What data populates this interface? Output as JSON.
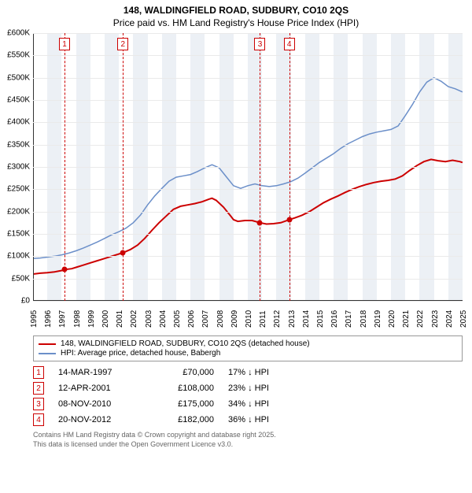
{
  "title_line1": "148, WALDINGFIELD ROAD, SUDBURY, CO10 2QS",
  "title_line2": "Price paid vs. HM Land Registry's House Price Index (HPI)",
  "chart": {
    "type": "line",
    "background_color": "#ffffff",
    "grid_color": "#eaeaea",
    "band_color": "#dce3ec",
    "axis_color": "#333333",
    "x": {
      "start": 1995,
      "end": 2025,
      "ticks": [
        1995,
        1996,
        1997,
        1998,
        1999,
        2000,
        2001,
        2002,
        2003,
        2004,
        2005,
        2006,
        2007,
        2008,
        2009,
        2010,
        2011,
        2012,
        2013,
        2014,
        2015,
        2016,
        2017,
        2018,
        2019,
        2020,
        2021,
        2022,
        2023,
        2024,
        2025
      ]
    },
    "y": {
      "start": 0,
      "end": 600000,
      "ticks": [
        0,
        50000,
        100000,
        150000,
        200000,
        250000,
        300000,
        350000,
        400000,
        450000,
        500000,
        550000,
        600000
      ],
      "tick_labels": [
        "£0",
        "£50K",
        "£100K",
        "£150K",
        "£200K",
        "£250K",
        "£300K",
        "£350K",
        "£400K",
        "£450K",
        "£500K",
        "£550K",
        "£600K"
      ]
    },
    "alt_bands_start": 1995,
    "tick_fontsize": 10,
    "series": [
      {
        "key": "property",
        "label": "148, WALDINGFIELD ROAD, SUDBURY, CO10 2QS (detached house)",
        "color": "#cc0000",
        "width": 2,
        "points": [
          [
            1995.0,
            60000
          ],
          [
            1995.5,
            62000
          ],
          [
            1996.0,
            63000
          ],
          [
            1996.5,
            65000
          ],
          [
            1997.0,
            68000
          ],
          [
            1997.2,
            70000
          ],
          [
            1997.7,
            72000
          ],
          [
            1998.0,
            75000
          ],
          [
            1998.5,
            80000
          ],
          [
            1999.0,
            85000
          ],
          [
            1999.5,
            90000
          ],
          [
            2000.0,
            95000
          ],
          [
            2000.5,
            100000
          ],
          [
            2001.0,
            105000
          ],
          [
            2001.3,
            108000
          ],
          [
            2001.8,
            115000
          ],
          [
            2002.3,
            125000
          ],
          [
            2002.8,
            140000
          ],
          [
            2003.3,
            158000
          ],
          [
            2003.8,
            175000
          ],
          [
            2004.3,
            190000
          ],
          [
            2004.8,
            205000
          ],
          [
            2005.3,
            212000
          ],
          [
            2005.8,
            215000
          ],
          [
            2006.3,
            218000
          ],
          [
            2006.8,
            222000
          ],
          [
            2007.3,
            228000
          ],
          [
            2007.5,
            230000
          ],
          [
            2007.8,
            225000
          ],
          [
            2008.3,
            210000
          ],
          [
            2008.8,
            190000
          ],
          [
            2009.0,
            182000
          ],
          [
            2009.3,
            178000
          ],
          [
            2009.8,
            180000
          ],
          [
            2010.3,
            180000
          ],
          [
            2010.85,
            175000
          ],
          [
            2011.3,
            172000
          ],
          [
            2011.8,
            173000
          ],
          [
            2012.3,
            175000
          ],
          [
            2012.9,
            182000
          ],
          [
            2013.3,
            186000
          ],
          [
            2013.8,
            192000
          ],
          [
            2014.3,
            200000
          ],
          [
            2014.8,
            210000
          ],
          [
            2015.3,
            220000
          ],
          [
            2015.8,
            228000
          ],
          [
            2016.3,
            235000
          ],
          [
            2016.8,
            243000
          ],
          [
            2017.3,
            250000
          ],
          [
            2017.8,
            256000
          ],
          [
            2018.3,
            261000
          ],
          [
            2018.8,
            265000
          ],
          [
            2019.3,
            268000
          ],
          [
            2019.8,
            270000
          ],
          [
            2020.3,
            273000
          ],
          [
            2020.8,
            280000
          ],
          [
            2021.3,
            292000
          ],
          [
            2021.8,
            303000
          ],
          [
            2022.3,
            312000
          ],
          [
            2022.8,
            317000
          ],
          [
            2023.3,
            314000
          ],
          [
            2023.8,
            312000
          ],
          [
            2024.3,
            315000
          ],
          [
            2024.8,
            312000
          ],
          [
            2025.0,
            310000
          ]
        ]
      },
      {
        "key": "hpi",
        "label": "HPI: Average price, detached house, Babergh",
        "color": "#6b8fc9",
        "width": 1.5,
        "points": [
          [
            1995.0,
            95000
          ],
          [
            1995.5,
            96000
          ],
          [
            1996.0,
            98000
          ],
          [
            1996.5,
            100000
          ],
          [
            1997.0,
            103000
          ],
          [
            1997.5,
            107000
          ],
          [
            1998.0,
            112000
          ],
          [
            1998.5,
            118000
          ],
          [
            1999.0,
            125000
          ],
          [
            1999.5,
            132000
          ],
          [
            2000.0,
            140000
          ],
          [
            2000.5,
            148000
          ],
          [
            2001.0,
            155000
          ],
          [
            2001.5,
            163000
          ],
          [
            2002.0,
            175000
          ],
          [
            2002.5,
            192000
          ],
          [
            2003.0,
            215000
          ],
          [
            2003.5,
            235000
          ],
          [
            2004.0,
            252000
          ],
          [
            2004.5,
            268000
          ],
          [
            2005.0,
            277000
          ],
          [
            2005.5,
            280000
          ],
          [
            2006.0,
            283000
          ],
          [
            2006.5,
            290000
          ],
          [
            2007.0,
            298000
          ],
          [
            2007.5,
            305000
          ],
          [
            2008.0,
            298000
          ],
          [
            2008.5,
            278000
          ],
          [
            2009.0,
            258000
          ],
          [
            2009.5,
            252000
          ],
          [
            2010.0,
            258000
          ],
          [
            2010.5,
            262000
          ],
          [
            2011.0,
            258000
          ],
          [
            2011.5,
            256000
          ],
          [
            2012.0,
            258000
          ],
          [
            2012.5,
            262000
          ],
          [
            2013.0,
            267000
          ],
          [
            2013.5,
            275000
          ],
          [
            2014.0,
            286000
          ],
          [
            2014.5,
            298000
          ],
          [
            2015.0,
            310000
          ],
          [
            2015.5,
            320000
          ],
          [
            2016.0,
            330000
          ],
          [
            2016.5,
            342000
          ],
          [
            2017.0,
            352000
          ],
          [
            2017.5,
            360000
          ],
          [
            2018.0,
            368000
          ],
          [
            2018.5,
            374000
          ],
          [
            2019.0,
            378000
          ],
          [
            2019.5,
            381000
          ],
          [
            2020.0,
            384000
          ],
          [
            2020.5,
            392000
          ],
          [
            2021.0,
            415000
          ],
          [
            2021.5,
            440000
          ],
          [
            2022.0,
            468000
          ],
          [
            2022.5,
            490000
          ],
          [
            2023.0,
            500000
          ],
          [
            2023.5,
            492000
          ],
          [
            2024.0,
            480000
          ],
          [
            2024.5,
            475000
          ],
          [
            2025.0,
            468000
          ]
        ]
      }
    ],
    "event_markers": [
      {
        "n": "1",
        "year": 1997.2
      },
      {
        "n": "2",
        "year": 2001.28
      },
      {
        "n": "3",
        "year": 2010.85
      },
      {
        "n": "4",
        "year": 2012.89
      }
    ],
    "sale_dots": [
      {
        "year": 1997.2,
        "price": 70000
      },
      {
        "year": 2001.28,
        "price": 108000
      },
      {
        "year": 2010.85,
        "price": 175000
      },
      {
        "year": 2012.89,
        "price": 182000
      }
    ],
    "sale_dot_color": "#cc0000"
  },
  "sales_table": {
    "rows": [
      {
        "n": "1",
        "date": "14-MAR-1997",
        "price": "£70,000",
        "delta": "17% ↓ HPI"
      },
      {
        "n": "2",
        "date": "12-APR-2001",
        "price": "£108,000",
        "delta": "23% ↓ HPI"
      },
      {
        "n": "3",
        "date": "08-NOV-2010",
        "price": "£175,000",
        "delta": "34% ↓ HPI"
      },
      {
        "n": "4",
        "date": "20-NOV-2012",
        "price": "£182,000",
        "delta": "36% ↓ HPI"
      }
    ]
  },
  "footer_line1": "Contains HM Land Registry data © Crown copyright and database right 2025.",
  "footer_line2": "This data is licensed under the Open Government Licence v3.0."
}
